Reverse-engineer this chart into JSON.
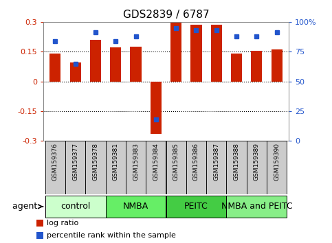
{
  "title": "GDS2839 / 6787",
  "samples": [
    "GSM159376",
    "GSM159377",
    "GSM159378",
    "GSM159381",
    "GSM159383",
    "GSM159384",
    "GSM159385",
    "GSM159386",
    "GSM159387",
    "GSM159388",
    "GSM159389",
    "GSM159390"
  ],
  "log_ratio": [
    0.14,
    0.095,
    0.21,
    0.17,
    0.175,
    -0.265,
    0.3,
    0.285,
    0.285,
    0.14,
    0.155,
    0.16
  ],
  "percentile_rank": [
    0.84,
    0.65,
    0.91,
    0.84,
    0.88,
    0.18,
    0.95,
    0.93,
    0.93,
    0.88,
    0.88,
    0.91
  ],
  "ylim": [
    -0.3,
    0.3
  ],
  "yticks_left": [
    -0.3,
    -0.15,
    0.0,
    0.15,
    0.3
  ],
  "ytick_labels_left": [
    "-0.3",
    "-0.15",
    "0",
    "0.15",
    "0.3"
  ],
  "yticks_right_pct": [
    0,
    25,
    50,
    75,
    100
  ],
  "ytick_labels_right": [
    "0",
    "25",
    "50",
    "75",
    "100%"
  ],
  "hlines": [
    -0.15,
    0.0,
    0.15
  ],
  "bar_color": "#CC2200",
  "dot_color": "#2255CC",
  "bg_color": "#FFFFFF",
  "sample_box_color": "#CCCCCC",
  "groups": [
    {
      "label": "control",
      "start": 0,
      "end": 3,
      "color": "#CCFFCC"
    },
    {
      "label": "NMBA",
      "start": 3,
      "end": 6,
      "color": "#66EE66"
    },
    {
      "label": "PEITC",
      "start": 6,
      "end": 9,
      "color": "#44CC44"
    },
    {
      "label": "NMBA and PEITC",
      "start": 9,
      "end": 12,
      "color": "#88EE88"
    }
  ],
  "legend_items": [
    {
      "label": "log ratio",
      "color": "#CC2200"
    },
    {
      "label": "percentile rank within the sample",
      "color": "#2255CC"
    }
  ],
  "agent_label": "agent",
  "tick_color_left": "#CC2200",
  "tick_color_right": "#2255CC",
  "title_fontsize": 11,
  "tick_fontsize": 8,
  "sample_fontsize": 6.5,
  "group_fontsize": 9,
  "legend_fontsize": 8,
  "agent_fontsize": 9
}
